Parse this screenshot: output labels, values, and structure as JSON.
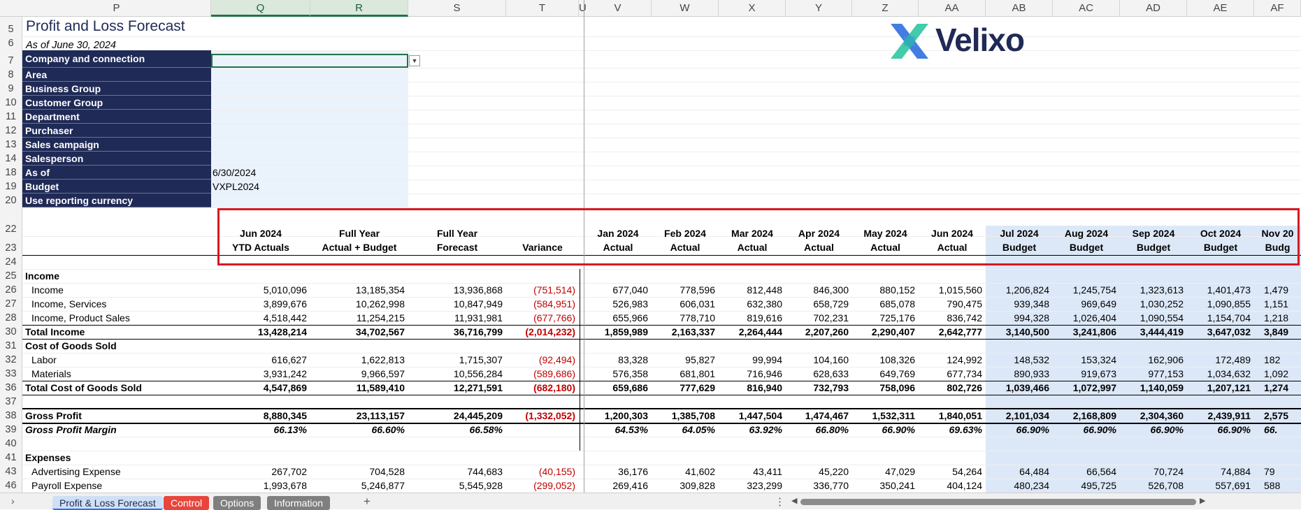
{
  "columns": [
    {
      "id": "P",
      "label": "P"
    },
    {
      "id": "Q",
      "label": "Q"
    },
    {
      "id": "R",
      "label": "R"
    },
    {
      "id": "S",
      "label": "S"
    },
    {
      "id": "T",
      "label": "T"
    },
    {
      "id": "U",
      "label": "U"
    },
    {
      "id": "V",
      "label": "V"
    },
    {
      "id": "W",
      "label": "W"
    },
    {
      "id": "X",
      "label": "X"
    },
    {
      "id": "Y",
      "label": "Y"
    },
    {
      "id": "Z",
      "label": "Z"
    },
    {
      "id": "AA",
      "label": "AA"
    },
    {
      "id": "AB",
      "label": "AB"
    },
    {
      "id": "AC",
      "label": "AC"
    },
    {
      "id": "AD",
      "label": "AD"
    },
    {
      "id": "AE",
      "label": "AE"
    },
    {
      "id": "AF",
      "label": "AF"
    }
  ],
  "selected_columns": [
    "Q",
    "R"
  ],
  "title": "Profit and Loss Forecast",
  "as_of_subtitle": "As of June 30, 2024",
  "logo": {
    "text": "Velixo",
    "icon": "velixo-x-logo",
    "colors": [
      "#2f6fe0",
      "#22c39a",
      "#1f2a56"
    ]
  },
  "parameters": [
    {
      "row": "7",
      "label": "Company and connection",
      "value": ""
    },
    {
      "row": "8",
      "label": "Area",
      "value": ""
    },
    {
      "row": "9",
      "label": "Business Group",
      "value": ""
    },
    {
      "row": "10",
      "label": "Customer Group",
      "value": ""
    },
    {
      "row": "11",
      "label": "Department",
      "value": ""
    },
    {
      "row": "12",
      "label": "Purchaser",
      "value": ""
    },
    {
      "row": "13",
      "label": "Sales campaign",
      "value": ""
    },
    {
      "row": "14",
      "label": "Salesperson",
      "value": ""
    },
    {
      "row": "18",
      "label": "As of",
      "value": "6/30/2024"
    },
    {
      "row": "19",
      "label": "Budget",
      "value": "VXPL2024"
    },
    {
      "row": "20",
      "label": "Use reporting currency",
      "value": ""
    }
  ],
  "header_rows": {
    "r22": "22",
    "r23": "23",
    "r24": "24"
  },
  "column_headers": [
    {
      "line1": "Jun 2024",
      "line2": "YTD Actuals"
    },
    {
      "line1": "Full Year",
      "line2": "Actual + Budget"
    },
    {
      "line1": "Full Year",
      "line2": "Forecast"
    },
    {
      "line1": "",
      "line2": "Variance"
    },
    {
      "line1": "Jan 2024",
      "line2": "Actual"
    },
    {
      "line1": "Feb 2024",
      "line2": "Actual"
    },
    {
      "line1": "Mar 2024",
      "line2": "Actual"
    },
    {
      "line1": "Apr 2024",
      "line2": "Actual"
    },
    {
      "line1": "May 2024",
      "line2": "Actual"
    },
    {
      "line1": "Jun 2024",
      "line2": "Actual"
    },
    {
      "line1": "Jul 2024",
      "line2": "Budget"
    },
    {
      "line1": "Aug 2024",
      "line2": "Budget"
    },
    {
      "line1": "Sep 2024",
      "line2": "Budget"
    },
    {
      "line1": "Oct 2024",
      "line2": "Budget"
    },
    {
      "line1": "Nov 20",
      "line2": "Budg"
    }
  ],
  "data_rows": [
    {
      "row": "25",
      "label": "Income",
      "style": "section",
      "values": []
    },
    {
      "row": "26",
      "label": "Income",
      "style": "detail",
      "values": [
        "5,010,096",
        "13,185,354",
        "13,936,868",
        "(751,514)",
        "677,040",
        "778,596",
        "812,448",
        "846,300",
        "880,152",
        "1,015,560",
        "1,206,824",
        "1,245,754",
        "1,323,613",
        "1,401,473",
        "1,479"
      ]
    },
    {
      "row": "27",
      "label": "Income, Services",
      "style": "detail",
      "values": [
        "3,899,676",
        "10,262,998",
        "10,847,949",
        "(584,951)",
        "526,983",
        "606,031",
        "632,380",
        "658,729",
        "685,078",
        "790,475",
        "939,348",
        "969,649",
        "1,030,252",
        "1,090,855",
        "1,151"
      ]
    },
    {
      "row": "28",
      "label": "Income, Product Sales",
      "style": "detail",
      "values": [
        "4,518,442",
        "11,254,215",
        "11,931,981",
        "(677,766)",
        "655,966",
        "778,710",
        "819,616",
        "702,231",
        "725,176",
        "836,742",
        "994,328",
        "1,026,404",
        "1,090,554",
        "1,154,704",
        "1,218"
      ]
    },
    {
      "row": "30",
      "label": "Total Income",
      "style": "total",
      "values": [
        "13,428,214",
        "34,702,567",
        "36,716,799",
        "(2,014,232)",
        "1,859,989",
        "2,163,337",
        "2,264,444",
        "2,207,260",
        "2,290,407",
        "2,642,777",
        "3,140,500",
        "3,241,806",
        "3,444,419",
        "3,647,032",
        "3,849"
      ]
    },
    {
      "row": "31",
      "label": "Cost of Goods Sold",
      "style": "section",
      "values": []
    },
    {
      "row": "32",
      "label": "Labor",
      "style": "detail",
      "values": [
        "616,627",
        "1,622,813",
        "1,715,307",
        "(92,494)",
        "83,328",
        "95,827",
        "99,994",
        "104,160",
        "108,326",
        "124,992",
        "148,532",
        "153,324",
        "162,906",
        "172,489",
        "182"
      ]
    },
    {
      "row": "33",
      "label": "Materials",
      "style": "detail",
      "values": [
        "3,931,242",
        "9,966,597",
        "10,556,284",
        "(589,686)",
        "576,358",
        "681,801",
        "716,946",
        "628,633",
        "649,769",
        "677,734",
        "890,933",
        "919,673",
        "977,153",
        "1,034,632",
        "1,092"
      ]
    },
    {
      "row": "36",
      "label": "Total Cost of Goods Sold",
      "style": "total",
      "values": [
        "4,547,869",
        "11,589,410",
        "12,271,591",
        "(682,180)",
        "659,686",
        "777,629",
        "816,940",
        "732,793",
        "758,096",
        "802,726",
        "1,039,466",
        "1,072,997",
        "1,140,059",
        "1,207,121",
        "1,274"
      ]
    },
    {
      "row": "37",
      "label": "",
      "style": "blank",
      "values": []
    },
    {
      "row": "38",
      "label": "Gross Profit",
      "style": "total2",
      "values": [
        "8,880,345",
        "23,113,157",
        "24,445,209",
        "(1,332,052)",
        "1,200,303",
        "1,385,708",
        "1,447,504",
        "1,474,467",
        "1,532,311",
        "1,840,051",
        "2,101,034",
        "2,168,809",
        "2,304,360",
        "2,439,911",
        "2,575"
      ]
    },
    {
      "row": "39",
      "label": "Gross Profit Margin",
      "style": "margin",
      "values": [
        "66.13%",
        "66.60%",
        "66.58%",
        "",
        "64.53%",
        "64.05%",
        "63.92%",
        "66.80%",
        "66.90%",
        "69.63%",
        "66.90%",
        "66.90%",
        "66.90%",
        "66.90%",
        "66."
      ]
    },
    {
      "row": "40",
      "label": "",
      "style": "blank",
      "values": []
    },
    {
      "row": "41",
      "label": "Expenses",
      "style": "section",
      "values": []
    },
    {
      "row": "43",
      "label": "Advertising Expense",
      "style": "detail",
      "values": [
        "267,702",
        "704,528",
        "744,683",
        "(40,155)",
        "36,176",
        "41,602",
        "43,411",
        "45,220",
        "47,029",
        "54,264",
        "64,484",
        "66,564",
        "70,724",
        "74,884",
        "79"
      ]
    },
    {
      "row": "46",
      "label": "Payroll Expense",
      "style": "detail",
      "values": [
        "1,993,678",
        "5,246,877",
        "5,545,928",
        "(299,052)",
        "269,416",
        "309,828",
        "323,299",
        "336,770",
        "350,241",
        "404,124",
        "480,234",
        "495,725",
        "526,708",
        "557,691",
        "588"
      ]
    }
  ],
  "sheet_tabs": [
    {
      "label": "Profit & Loss Forecast",
      "active": true,
      "color": "#cfe0f5"
    },
    {
      "label": "Control",
      "active": false,
      "color": "#e8453c"
    },
    {
      "label": "Options",
      "active": false,
      "color": "#7f7f7f"
    },
    {
      "label": "Information",
      "active": false,
      "color": "#7f7f7f"
    }
  ],
  "add_sheet_label": "+",
  "nav_prev": "›",
  "more_label": "⋮"
}
